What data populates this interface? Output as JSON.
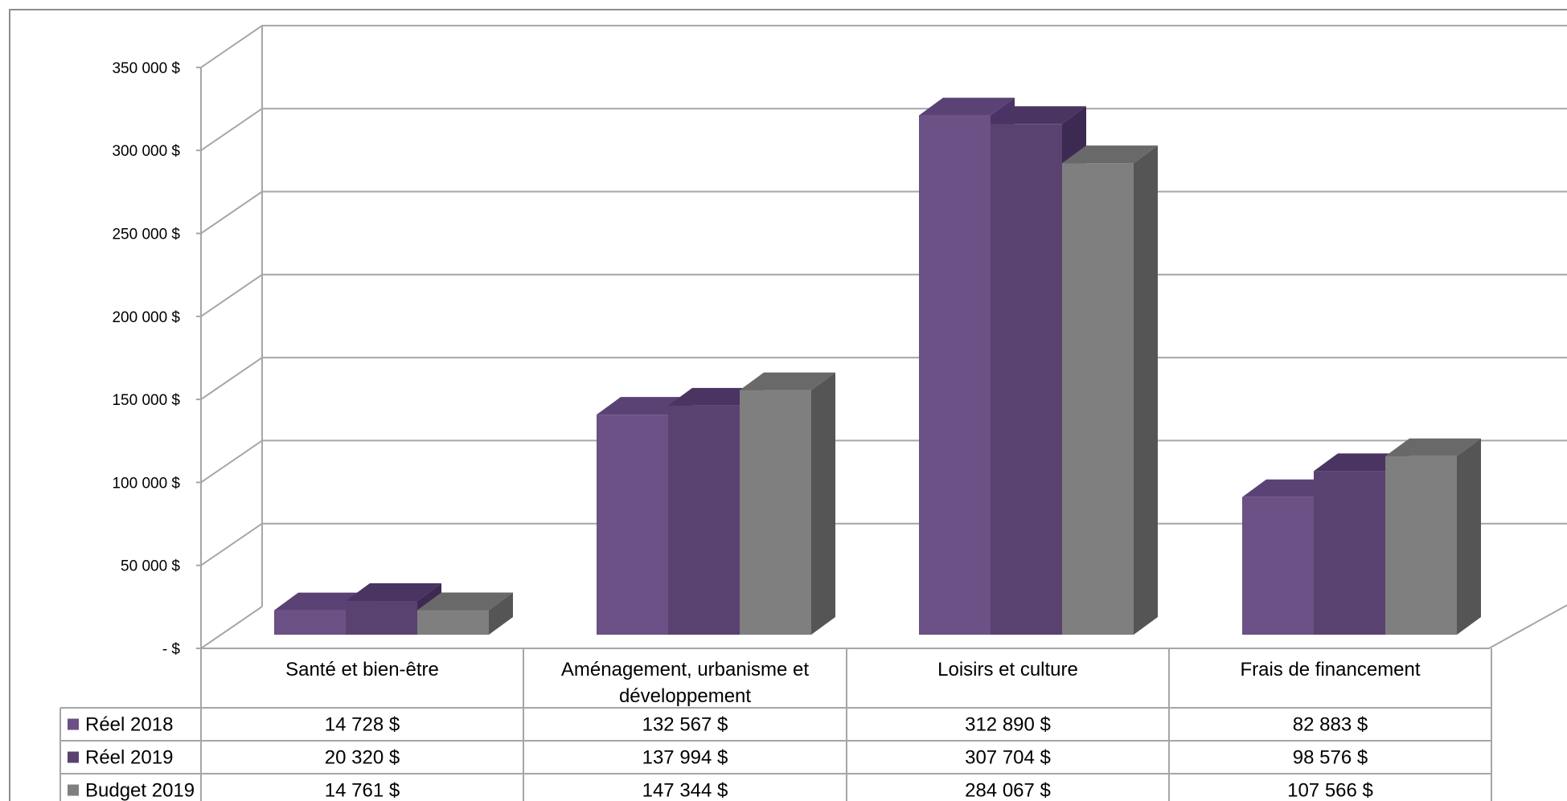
{
  "chart_data": {
    "type": "bar",
    "categories": [
      [
        "Santé et bien-être"
      ],
      [
        "Aménagement, urbanisme et",
        "développement"
      ],
      [
        "Loisirs et culture"
      ],
      [
        "Frais de financement"
      ]
    ],
    "series": [
      {
        "name": "Réel 2018",
        "values": [
          14728,
          132567,
          312890,
          82883
        ],
        "labels": [
          "14 728  $",
          "132 567  $",
          "312 890  $",
          "82 883  $"
        ],
        "color": "#6b5185",
        "side": "#4a3366",
        "topc": "#5b4275"
      },
      {
        "name": "Réel 2019",
        "values": [
          20320,
          137994,
          307704,
          98576
        ],
        "labels": [
          "20 320  $",
          "137 994  $",
          "307 704  $",
          "98 576  $"
        ],
        "color": "#5a4270",
        "side": "#3c2a52",
        "topc": "#4a3461"
      },
      {
        "name": "Budget 2019",
        "values": [
          14761,
          147344,
          284067,
          107566
        ],
        "labels": [
          "14 761  $",
          "147 344  $",
          "284 067  $",
          "107 566  $"
        ],
        "color": "#7f7f7f",
        "side": "#555555",
        "topc": "#696969"
      }
    ],
    "y_ticks": [
      {
        "value": 0,
        "label": "-  $"
      },
      {
        "value": 50000,
        "label": "50 000  $"
      },
      {
        "value": 100000,
        "label": "100 000  $"
      },
      {
        "value": 150000,
        "label": "150 000  $"
      },
      {
        "value": 200000,
        "label": "200 000  $"
      },
      {
        "value": 250000,
        "label": "250 000  $"
      },
      {
        "value": 300000,
        "label": "300 000  $"
      },
      {
        "value": 350000,
        "label": "350 000  $"
      }
    ],
    "ylim": [
      0,
      350000
    ],
    "grid": true,
    "legend": "data-table"
  }
}
